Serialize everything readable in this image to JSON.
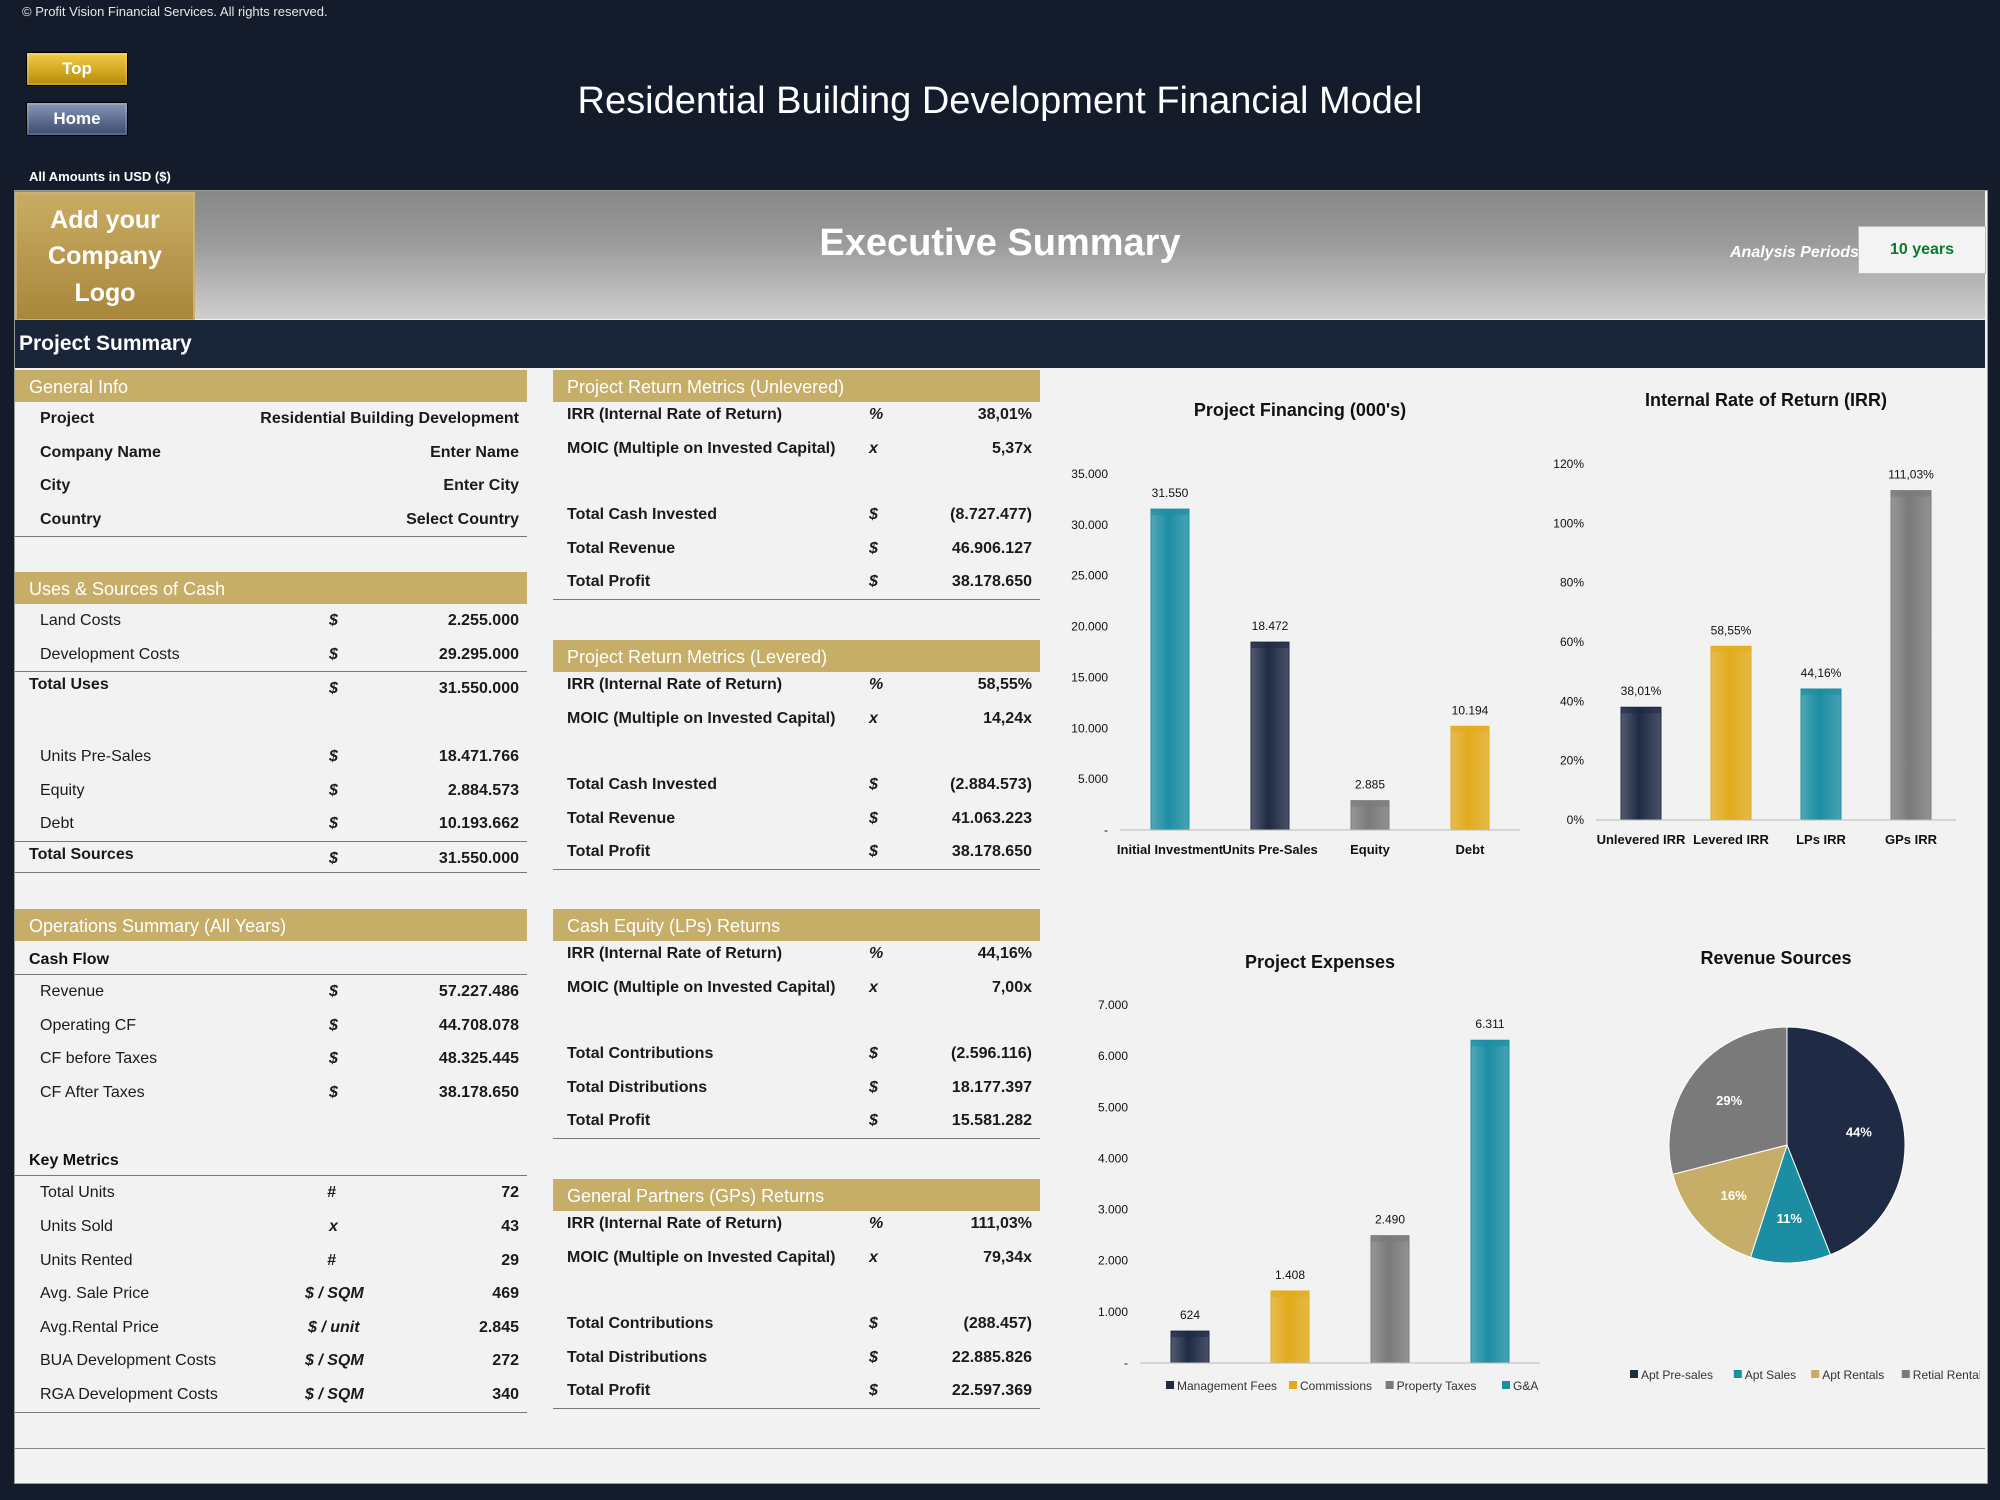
{
  "copyright": "© Profit Vision Financial Services. All rights reserved.",
  "nav": {
    "top": "Top",
    "home": "Home"
  },
  "title": "Residential Building Development Financial Model",
  "amounts": "All Amounts in  USD ($)",
  "logo_line1": "Add your",
  "logo_line2": "Company Logo",
  "exec_title": "Executive Summary",
  "analysis": {
    "label": "Analysis Periods",
    "value": "10 years"
  },
  "project_summary": "Project Summary",
  "general_info": {
    "title": "General Info",
    "rows": [
      {
        "label": "Project",
        "value": "Residential Building Development"
      },
      {
        "label": "Company Name",
        "value": "Enter Name"
      },
      {
        "label": "City",
        "value": "Enter City"
      },
      {
        "label": "Country",
        "value": "Select Country"
      }
    ]
  },
  "uses_sources": {
    "title": "Uses & Sources of Cash",
    "rows": [
      {
        "label": "Land Costs",
        "unit": "$",
        "value": "2.255.000"
      },
      {
        "label": "Development Costs",
        "unit": "$",
        "value": "29.295.000"
      },
      {
        "label": "Total Uses",
        "unit": "$",
        "value": "31.550.000"
      },
      {
        "label": "Units Pre-Sales",
        "unit": "$",
        "value": "18.471.766"
      },
      {
        "label": "Equity",
        "unit": "$",
        "value": "2.884.573"
      },
      {
        "label": "Debt",
        "unit": "$",
        "value": "10.193.662"
      },
      {
        "label": "Total Sources",
        "unit": "$",
        "value": "31.550.000"
      }
    ]
  },
  "operations": {
    "title": "Operations Summary (All Years)",
    "cashflow_label": "Cash Flow",
    "cashflow": [
      {
        "label": "Revenue",
        "unit": "$",
        "value": "57.227.486"
      },
      {
        "label": "Operating CF",
        "unit": "$",
        "value": "44.708.078"
      },
      {
        "label": "CF before Taxes",
        "unit": "$",
        "value": "48.325.445"
      },
      {
        "label": "CF After Taxes",
        "unit": "$",
        "value": "38.178.650"
      }
    ],
    "metrics_label": "Key Metrics",
    "metrics": [
      {
        "label": "Total Units",
        "unit": "#",
        "value": "72"
      },
      {
        "label": "Units Sold",
        "unit": "x",
        "value": "43"
      },
      {
        "label": "Units Rented",
        "unit": "#",
        "value": "29"
      },
      {
        "label": "Avg. Sale Price",
        "unit": "$ / SQM",
        "value": "469"
      },
      {
        "label": "Avg.Rental Price",
        "unit": "$ / unit",
        "value": "2.845"
      },
      {
        "label": "BUA Development Costs",
        "unit": "$ / SQM",
        "value": "272"
      },
      {
        "label": "RGA Development Costs",
        "unit": "$ / SQM",
        "value": "340"
      }
    ]
  },
  "unlevered": {
    "title": "Project Return Metrics (Unlevered)",
    "rows": [
      {
        "label": "IRR (Internal Rate of Return)",
        "unit": "%",
        "value": "38,01%"
      },
      {
        "label": "MOIC (Multiple on Invested Capital)",
        "unit": "x",
        "value": "5,37x"
      },
      {
        "label": "Total Cash Invested",
        "unit": "$",
        "value": "(8.727.477)"
      },
      {
        "label": "Total Revenue",
        "unit": "$",
        "value": "46.906.127"
      },
      {
        "label": "Total Profit",
        "unit": "$",
        "value": "38.178.650"
      }
    ]
  },
  "levered": {
    "title": "Project Return Metrics (Levered)",
    "rows": [
      {
        "label": "IRR (Internal Rate of Return)",
        "unit": "%",
        "value": "58,55%"
      },
      {
        "label": "MOIC (Multiple on Invested Capital)",
        "unit": "x",
        "value": "14,24x"
      },
      {
        "label": "Total Cash Invested",
        "unit": "$",
        "value": "(2.884.573)"
      },
      {
        "label": "Total Revenue",
        "unit": "$",
        "value": "41.063.223"
      },
      {
        "label": "Total Profit",
        "unit": "$",
        "value": "38.178.650"
      }
    ]
  },
  "lps": {
    "title": "Cash Equity (LPs) Returns",
    "rows": [
      {
        "label": "IRR (Internal Rate of Return)",
        "unit": "%",
        "value": "44,16%"
      },
      {
        "label": "MOIC (Multiple on Invested Capital)",
        "unit": "x",
        "value": "7,00x"
      },
      {
        "label": "Total Contributions",
        "unit": "$",
        "value": "(2.596.116)"
      },
      {
        "label": "Total Distributions",
        "unit": "$",
        "value": "18.177.397"
      },
      {
        "label": "Total Profit",
        "unit": "$",
        "value": "15.581.282"
      }
    ]
  },
  "gps": {
    "title": "General Partners (GPs) Returns",
    "rows": [
      {
        "label": "IRR (Internal Rate of Return)",
        "unit": "%",
        "value": "111,03%"
      },
      {
        "label": "MOIC (Multiple on Invested Capital)",
        "unit": "x",
        "value": "79,34x"
      },
      {
        "label": "Total Contributions",
        "unit": "$",
        "value": "(288.457)"
      },
      {
        "label": "Total Distributions",
        "unit": "$",
        "value": "22.885.826"
      },
      {
        "label": "Total Profit",
        "unit": "$",
        "value": "22.597.369"
      }
    ]
  },
  "colors": {
    "navy": "#1f2a44",
    "teal": "#1c8ea3",
    "gold": "#e2ab1c",
    "gray": "#7a7a7a",
    "tan": "#c6ad68"
  },
  "chart_data": [
    {
      "type": "bar",
      "title": "Project Financing (000's)",
      "categories": [
        "Initial Investment",
        "Units Pre-Sales",
        "Equity",
        "Debt"
      ],
      "values": [
        31550,
        18472,
        2885,
        10194
      ],
      "labels": [
        "31.550",
        "18.472",
        "2.885",
        "10.194"
      ],
      "colors": [
        "teal",
        "navy",
        "gray",
        "gold"
      ],
      "ylim": [
        0,
        35000
      ],
      "yticks": [
        "-",
        "5.000",
        "10.000",
        "15.000",
        "20.000",
        "25.000",
        "30.000",
        "35.000"
      ]
    },
    {
      "type": "bar",
      "title": "Internal Rate of Return (IRR)",
      "categories": [
        "Unlevered IRR",
        "Levered IRR",
        "LPs IRR",
        "GPs IRR"
      ],
      "values": [
        38.01,
        58.55,
        44.16,
        111.03
      ],
      "labels": [
        "38,01%",
        "58,55%",
        "44,16%",
        "111,03%"
      ],
      "colors": [
        "navy",
        "gold",
        "teal",
        "gray"
      ],
      "ylim": [
        0,
        120
      ],
      "yticks": [
        "0%",
        "20%",
        "40%",
        "60%",
        "80%",
        "100%",
        "120%"
      ]
    },
    {
      "type": "bar",
      "title": "Project Expenses",
      "categories": [
        "Management Fees",
        "Commissions",
        "Property Taxes",
        "G&A"
      ],
      "values": [
        624,
        1408,
        2490,
        6311
      ],
      "labels": [
        "624",
        "1.408",
        "2.490",
        "6.311"
      ],
      "colors": [
        "navy",
        "gold",
        "gray",
        "teal"
      ],
      "ylim": [
        0,
        7000
      ],
      "yticks": [
        "-",
        "1.000",
        "2.000",
        "3.000",
        "4.000",
        "5.000",
        "6.000",
        "7.000"
      ],
      "legend": "bottom"
    },
    {
      "type": "pie",
      "title": "Revenue Sources",
      "categories": [
        "Apt Pre-sales",
        "Apt Sales",
        "Apt Rentals",
        "Retial Rentals"
      ],
      "values": [
        44,
        11,
        16,
        29
      ],
      "labels": [
        "44%",
        "11%",
        "16%",
        "29%"
      ],
      "colors": [
        "navy",
        "teal",
        "tan",
        "gray"
      ],
      "legend": "bottom"
    }
  ]
}
